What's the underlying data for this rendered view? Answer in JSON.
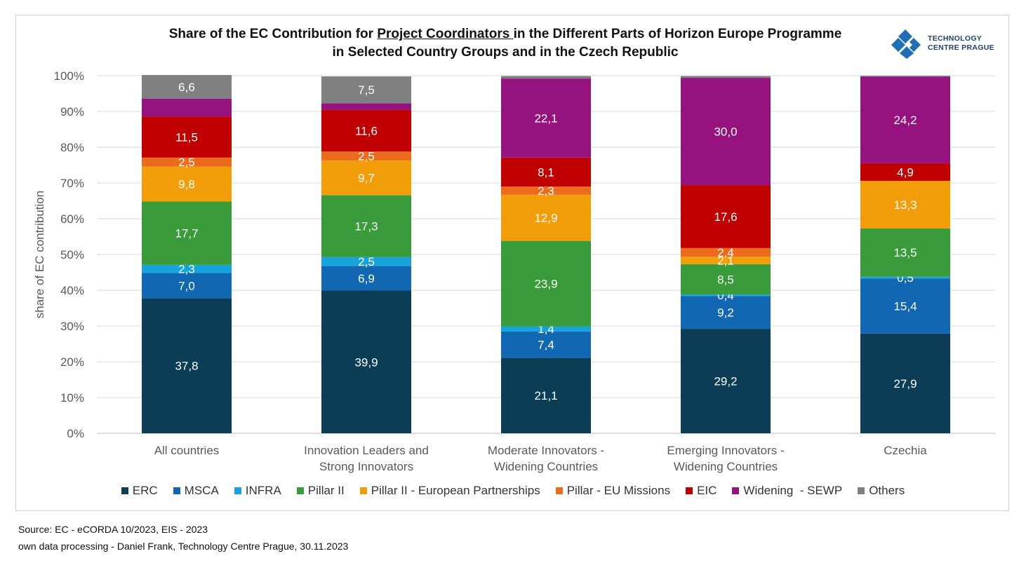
{
  "title": {
    "line1_pre": "Share of the EC Contribution for ",
    "line1_underlined": "Project Coordinators ",
    "line1_post": "in the Different Parts of Horizon Europe Programme",
    "line2": "in Selected Country Groups and in the Czech Republic"
  },
  "logo": {
    "line1": "TECHNOLOGY",
    "line2": "CENTRE PRAGUE",
    "color": "#1f6fb5"
  },
  "source": {
    "line1": "Source: EC - eCORDA 10/2023, EIS - 2023",
    "line2": "own data processing - Daniel Frank, Technology Centre Prague, 30.11.2023"
  },
  "chart_data": {
    "type": "bar",
    "stacked": true,
    "title": "Share of the EC Contribution for Project Coordinators in the Different Parts of Horizon Europe Programme in Selected Country Groups and in the Czech Republic",
    "xlabel": "",
    "ylabel": "share of EC contribution",
    "ylim": [
      0,
      100
    ],
    "yticks": [
      "0%",
      "10%",
      "20%",
      "30%",
      "40%",
      "50%",
      "60%",
      "70%",
      "80%",
      "90%",
      "100%"
    ],
    "grid": true,
    "legend_position": "bottom",
    "categories": [
      [
        "All countries"
      ],
      [
        "Innovation Leaders and",
        "Strong Innovators"
      ],
      [
        "Moderate Innovators -",
        "Widening Countries"
      ],
      [
        "Emerging Innovators -",
        "Widening Countries"
      ],
      [
        "Czechia"
      ]
    ],
    "series": [
      {
        "name": "ERC",
        "color": "#0b3e56",
        "values": [
          37.8,
          39.9,
          21.1,
          29.2,
          27.9
        ],
        "labels": [
          "37,8",
          "39,9",
          "21,1",
          "29,2",
          "27,9"
        ]
      },
      {
        "name": "MSCA",
        "color": "#1167b1",
        "values": [
          7.0,
          6.9,
          7.4,
          9.2,
          15.4
        ],
        "labels": [
          "7,0",
          "6,9",
          "7,4",
          "9,2",
          "15,4"
        ]
      },
      {
        "name": "INFRA",
        "color": "#17a4dc",
        "values": [
          2.3,
          2.5,
          1.4,
          0.4,
          0.5
        ],
        "labels": [
          "2,3",
          "2,5",
          "1,4",
          "0,4",
          "0,5"
        ]
      },
      {
        "name": "Pillar II",
        "color": "#3a9b3a",
        "values": [
          17.7,
          17.3,
          23.9,
          8.5,
          13.5
        ],
        "labels": [
          "17,7",
          "17,3",
          "23,9",
          "8,5",
          "13,5"
        ]
      },
      {
        "name": "Pillar II - European Partnerships",
        "color": "#f29d0a",
        "values": [
          9.8,
          9.7,
          12.9,
          2.1,
          13.3
        ],
        "labels": [
          "9,8",
          "9,7",
          "12,9",
          "2,1",
          "13,3"
        ]
      },
      {
        "name": "Pillar - EU Missions",
        "color": "#ec6b1c",
        "values": [
          2.5,
          2.5,
          2.3,
          2.4,
          0.0
        ],
        "labels": [
          "2,5",
          "2,5",
          "2,3",
          "2,4",
          ""
        ]
      },
      {
        "name": "EIC",
        "color": "#c00000",
        "values": [
          11.5,
          11.6,
          8.1,
          17.6,
          4.9
        ],
        "labels": [
          "11,5",
          "11,6",
          "8,1",
          "17,6",
          "4,9"
        ]
      },
      {
        "name": "Widening  - SEWP",
        "color": "#96137f",
        "values": [
          5.0,
          1.9,
          22.1,
          30.0,
          24.2
        ],
        "labels": [
          "",
          "",
          "22,1",
          "30,0",
          "24,2"
        ]
      },
      {
        "name": "Others",
        "color": "#808080",
        "values": [
          6.6,
          7.5,
          0.7,
          0.5,
          0.3
        ],
        "labels": [
          "6,6",
          "7,5",
          "",
          "",
          ""
        ]
      }
    ]
  }
}
